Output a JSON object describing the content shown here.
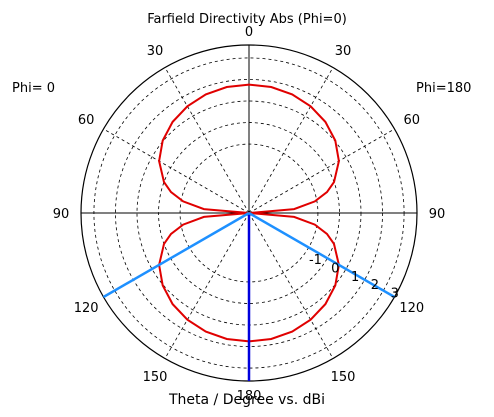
{
  "chart_data": {
    "type": "polar",
    "title": "Farfield Directivity Abs (Phi=0)",
    "xlabel": "Theta / Degree vs. dBi",
    "left_half_label": "Phi=  0",
    "right_half_label": "Phi=180",
    "angle_ticks": [
      0,
      30,
      60,
      90,
      120,
      150,
      180
    ],
    "radial_ticks": [
      -1,
      0,
      1,
      2,
      3
    ],
    "r_range": [
      -4.2,
      3.6
    ],
    "grid": true,
    "series": [
      {
        "color": "#e00000",
        "pattern": "dipole",
        "theta": [
          0,
          10,
          20,
          30,
          40,
          50,
          60,
          70,
          75,
          80,
          85,
          90,
          95,
          100,
          105,
          110,
          120,
          130,
          140,
          150,
          160,
          170,
          180
        ],
        "values": [
          1.76,
          1.74,
          1.66,
          1.52,
          1.32,
          1.03,
          0.62,
          0.0,
          -0.45,
          -1.1,
          -2.1,
          -4.2,
          -2.1,
          -1.1,
          -0.45,
          0.0,
          0.62,
          1.03,
          1.32,
          1.52,
          1.66,
          1.74,
          1.76
        ]
      }
    ],
    "markers": [
      {
        "color": "#0000dd",
        "theta": 180
      },
      {
        "color": "#1e90ff",
        "theta": 120
      },
      {
        "color": "#1e90ff",
        "theta": -120
      }
    ]
  }
}
